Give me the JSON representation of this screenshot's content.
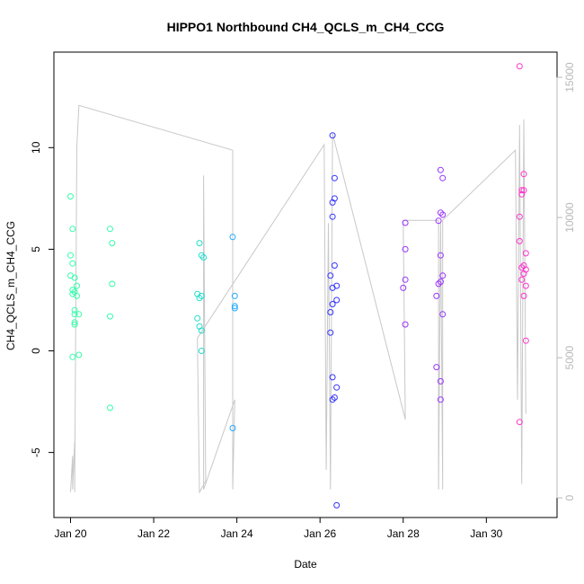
{
  "chart_data": {
    "type": "scatter",
    "title": "HIPPO1 Northbound CH4_QCLS_m_CH4_CCG",
    "xlabel": "Date",
    "ylabel": "CH4_QCLS_m_CH4_CCG",
    "x_unit": "days (January)",
    "xlim": [
      19.6,
      31.7
    ],
    "ylim": [
      -8.2,
      14.7
    ],
    "x_ticks": [
      20,
      22,
      24,
      26,
      28,
      30
    ],
    "x_tick_labels": [
      "Jan 20",
      "Jan 22",
      "Jan 24",
      "Jan 26",
      "Jan 28",
      "Jan 30"
    ],
    "y_ticks": [
      -5,
      0,
      5,
      10
    ],
    "y_tick_labels": [
      "-5",
      "0",
      "5",
      "10"
    ],
    "y2_ticks": [
      0,
      5000,
      10000,
      15000
    ],
    "y2_tick_labels": [
      "0",
      "5000",
      "10000",
      "15000"
    ],
    "y2_lim": [
      -700,
      15900
    ],
    "y2_color": "#b8b8b8",
    "grid": false,
    "legend": "none",
    "point_colors": [
      "#33ffaa",
      "#22ddcc",
      "#22aaff",
      "#2266ff",
      "#3333ff",
      "#9933ff",
      "#cc33ff",
      "#ff33cc"
    ],
    "series": [
      {
        "color": "#33ffaa",
        "points": [
          [
            20.0,
            7.6
          ],
          [
            20.05,
            6.0
          ],
          [
            20.0,
            4.7
          ],
          [
            20.05,
            4.3
          ],
          [
            20.0,
            3.7
          ],
          [
            20.1,
            3.6
          ],
          [
            20.15,
            3.2
          ],
          [
            20.1,
            2.9
          ],
          [
            20.05,
            2.8
          ],
          [
            20.15,
            2.7
          ],
          [
            20.2,
            1.8
          ],
          [
            20.1,
            1.8
          ],
          [
            20.1,
            1.4
          ],
          [
            20.1,
            1.3
          ],
          [
            20.2,
            -0.2
          ],
          [
            20.05,
            -0.3
          ],
          [
            20.1,
            2.0
          ],
          [
            20.05,
            3.0
          ],
          [
            20.95,
            6.0
          ],
          [
            21.0,
            5.3
          ],
          [
            21.0,
            3.3
          ],
          [
            20.95,
            1.7
          ],
          [
            20.95,
            -2.8
          ]
        ]
      },
      {
        "color": "#22ddcc",
        "points": [
          [
            23.1,
            5.3
          ],
          [
            23.15,
            4.7
          ],
          [
            23.2,
            4.6
          ],
          [
            23.05,
            2.8
          ],
          [
            23.15,
            2.7
          ],
          [
            23.1,
            2.6
          ],
          [
            23.05,
            1.6
          ],
          [
            23.1,
            1.2
          ],
          [
            23.15,
            1.0
          ],
          [
            23.15,
            0.0
          ]
        ]
      },
      {
        "color": "#22aaff",
        "points": [
          [
            23.9,
            5.6
          ],
          [
            23.95,
            2.7
          ],
          [
            23.95,
            2.2
          ],
          [
            23.95,
            2.1
          ],
          [
            23.9,
            -3.8
          ]
        ]
      },
      {
        "color": "#3333ff",
        "points": [
          [
            26.3,
            10.6
          ],
          [
            26.35,
            8.5
          ],
          [
            26.35,
            7.5
          ],
          [
            26.3,
            7.3
          ],
          [
            26.3,
            6.6
          ],
          [
            26.25,
            3.7
          ],
          [
            26.35,
            4.2
          ],
          [
            26.3,
            3.1
          ],
          [
            26.4,
            3.2
          ],
          [
            26.4,
            2.5
          ],
          [
            26.3,
            2.3
          ],
          [
            26.25,
            1.9
          ],
          [
            26.25,
            0.9
          ],
          [
            26.3,
            -1.3
          ],
          [
            26.4,
            -1.8
          ],
          [
            26.35,
            -2.3
          ],
          [
            26.3,
            -2.4
          ],
          [
            26.4,
            -7.6
          ]
        ]
      },
      {
        "color": "#9933ff",
        "points": [
          [
            28.05,
            6.3
          ],
          [
            28.05,
            5.0
          ],
          [
            28.05,
            3.5
          ],
          [
            28.0,
            3.1
          ],
          [
            28.05,
            1.3
          ],
          [
            28.9,
            8.9
          ],
          [
            28.95,
            8.5
          ],
          [
            28.9,
            6.8
          ],
          [
            28.95,
            6.7
          ],
          [
            28.85,
            6.4
          ],
          [
            28.9,
            4.7
          ],
          [
            28.95,
            3.7
          ],
          [
            28.9,
            3.4
          ],
          [
            28.85,
            3.3
          ],
          [
            28.8,
            2.7
          ],
          [
            28.95,
            1.8
          ],
          [
            28.8,
            -0.8
          ],
          [
            28.9,
            -1.5
          ],
          [
            28.9,
            -2.4
          ]
        ]
      },
      {
        "color": "#ff33cc",
        "points": [
          [
            30.8,
            14.0
          ],
          [
            30.9,
            8.7
          ],
          [
            30.9,
            7.9
          ],
          [
            30.85,
            7.9
          ],
          [
            30.85,
            7.7
          ],
          [
            30.8,
            6.6
          ],
          [
            30.8,
            5.4
          ],
          [
            30.95,
            4.8
          ],
          [
            30.9,
            4.2
          ],
          [
            30.85,
            4.1
          ],
          [
            30.95,
            4.0
          ],
          [
            30.9,
            3.8
          ],
          [
            30.85,
            3.5
          ],
          [
            30.95,
            3.2
          ],
          [
            30.9,
            2.7
          ],
          [
            30.95,
            0.5
          ],
          [
            30.8,
            -3.5
          ]
        ]
      }
    ],
    "altitude_line": {
      "color": "#c8c8c8",
      "axis": "right",
      "points": [
        [
          20.0,
          200
        ],
        [
          20.05,
          1500
        ],
        [
          20.05,
          300
        ],
        [
          20.1,
          2000
        ],
        [
          20.1,
          200
        ],
        [
          20.15,
          12500
        ],
        [
          20.2,
          14000
        ],
        [
          23.9,
          12400
        ],
        [
          23.9,
          300
        ],
        [
          23.95,
          3500
        ],
        [
          23.2,
          300
        ],
        [
          23.2,
          11500
        ],
        [
          23.25,
          600
        ],
        [
          23.1,
          200
        ],
        [
          23.05,
          5700
        ],
        [
          26.1,
          12600
        ],
        [
          26.15,
          1000
        ],
        [
          26.2,
          9800
        ],
        [
          26.25,
          300
        ],
        [
          26.3,
          13000
        ],
        [
          28.05,
          2800
        ],
        [
          28.0,
          9900
        ],
        [
          28.85,
          9900
        ],
        [
          28.85,
          300
        ],
        [
          28.9,
          9800
        ],
        [
          28.95,
          300
        ],
        [
          28.95,
          9900
        ],
        [
          30.7,
          12400
        ],
        [
          30.75,
          3500
        ],
        [
          30.8,
          13300
        ],
        [
          30.85,
          500
        ],
        [
          30.9,
          13500
        ],
        [
          30.95,
          3000
        ]
      ]
    }
  }
}
